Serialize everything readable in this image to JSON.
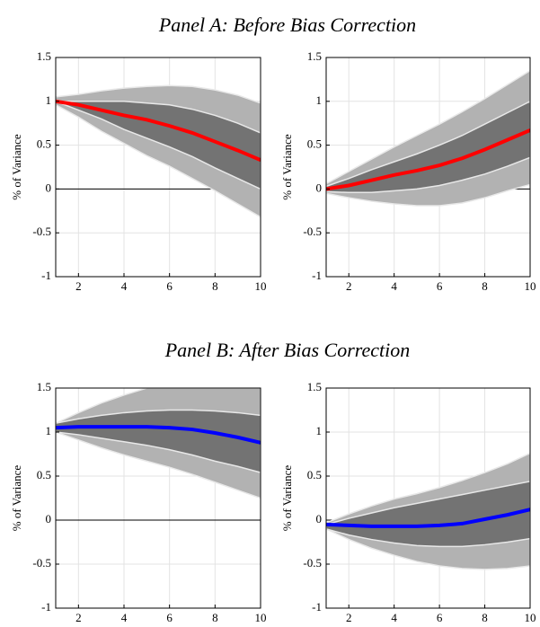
{
  "chart_data": [
    {
      "type": "line",
      "title": "Panel A: Before Bias Correction",
      "ylabel": "% of Variance",
      "x": [
        1,
        2,
        3,
        4,
        5,
        6,
        7,
        8,
        9,
        10
      ],
      "xlim": [
        1,
        10
      ],
      "xticks": [
        2,
        4,
        6,
        8,
        10
      ],
      "ylim": [
        -1,
        1.5
      ],
      "yticks": [
        -1,
        -0.5,
        0,
        0.5,
        1,
        1.5
      ],
      "grid": true,
      "hline": 0,
      "bands": [
        {
          "color": "#b2b2b2",
          "lower": [
            0.96,
            0.82,
            0.66,
            0.52,
            0.38,
            0.26,
            0.12,
            -0.02,
            -0.17,
            -0.32
          ],
          "upper": [
            1.05,
            1.08,
            1.12,
            1.15,
            1.17,
            1.18,
            1.17,
            1.13,
            1.07,
            0.98
          ]
        },
        {
          "color": "#737373",
          "lower": [
            1.0,
            0.9,
            0.8,
            0.68,
            0.58,
            0.48,
            0.37,
            0.24,
            0.12,
            0.0
          ],
          "upper": [
            1.0,
            1.0,
            1.0,
            1.0,
            0.98,
            0.96,
            0.91,
            0.84,
            0.75,
            0.64
          ]
        }
      ],
      "line": {
        "color": "#ff0000",
        "values": [
          1.0,
          0.96,
          0.9,
          0.84,
          0.79,
          0.72,
          0.64,
          0.54,
          0.44,
          0.33
        ]
      }
    },
    {
      "type": "line",
      "ylabel": "% of Variance",
      "x": [
        1,
        2,
        3,
        4,
        5,
        6,
        7,
        8,
        9,
        10
      ],
      "xlim": [
        1,
        10
      ],
      "xticks": [
        2,
        4,
        6,
        8,
        10
      ],
      "ylim": [
        -1,
        1.5
      ],
      "yticks": [
        -1,
        -0.5,
        0,
        0.5,
        1,
        1.5
      ],
      "grid": true,
      "hline": 0,
      "bands": [
        {
          "color": "#b2b2b2",
          "lower": [
            -0.05,
            -0.1,
            -0.14,
            -0.17,
            -0.19,
            -0.19,
            -0.16,
            -0.1,
            -0.02,
            0.05
          ],
          "upper": [
            0.06,
            0.2,
            0.34,
            0.48,
            0.61,
            0.74,
            0.88,
            1.03,
            1.19,
            1.35
          ]
        },
        {
          "color": "#737373",
          "lower": [
            -0.03,
            -0.04,
            -0.04,
            -0.02,
            0.0,
            0.04,
            0.1,
            0.17,
            0.26,
            0.36
          ],
          "upper": [
            0.03,
            0.12,
            0.22,
            0.31,
            0.4,
            0.5,
            0.61,
            0.74,
            0.87,
            1.0
          ]
        }
      ],
      "line": {
        "color": "#ff0000",
        "values": [
          0.0,
          0.04,
          0.1,
          0.16,
          0.21,
          0.27,
          0.35,
          0.45,
          0.56,
          0.67
        ]
      }
    },
    {
      "type": "line",
      "title": "Panel B: After Bias Correction",
      "ylabel": "% of Variance",
      "x": [
        1,
        2,
        3,
        4,
        5,
        6,
        7,
        8,
        9,
        10
      ],
      "xlim": [
        1,
        10
      ],
      "xticks": [
        2,
        4,
        6,
        8,
        10
      ],
      "ylim": [
        -1,
        1.5
      ],
      "yticks": [
        -1,
        -0.5,
        0,
        0.5,
        1,
        1.5
      ],
      "grid": true,
      "hline": 0,
      "bands": [
        {
          "color": "#b2b2b2",
          "lower": [
            1.0,
            0.91,
            0.82,
            0.74,
            0.67,
            0.6,
            0.52,
            0.43,
            0.34,
            0.25
          ],
          "upper": [
            1.1,
            1.22,
            1.33,
            1.42,
            1.5,
            1.5,
            1.5,
            1.5,
            1.5,
            1.5
          ]
        },
        {
          "color": "#737373",
          "lower": [
            1.0,
            0.97,
            0.93,
            0.89,
            0.85,
            0.8,
            0.74,
            0.67,
            0.61,
            0.54
          ],
          "upper": [
            1.1,
            1.15,
            1.19,
            1.22,
            1.24,
            1.25,
            1.25,
            1.24,
            1.22,
            1.19
          ]
        }
      ],
      "line": {
        "color": "#0000ff",
        "values": [
          1.05,
          1.06,
          1.06,
          1.06,
          1.06,
          1.05,
          1.03,
          0.99,
          0.94,
          0.88
        ]
      }
    },
    {
      "type": "line",
      "ylabel": "% of Variance",
      "x": [
        1,
        2,
        3,
        4,
        5,
        6,
        7,
        8,
        9,
        10
      ],
      "xlim": [
        1,
        10
      ],
      "xticks": [
        2,
        4,
        6,
        8,
        10
      ],
      "ylim": [
        -1,
        1.5
      ],
      "yticks": [
        -1,
        -0.5,
        0,
        0.5,
        1,
        1.5
      ],
      "grid": true,
      "hline": 0,
      "bands": [
        {
          "color": "#b2b2b2",
          "lower": [
            -0.1,
            -0.22,
            -0.32,
            -0.4,
            -0.47,
            -0.52,
            -0.55,
            -0.56,
            -0.55,
            -0.52
          ],
          "upper": [
            -0.03,
            0.07,
            0.16,
            0.24,
            0.3,
            0.37,
            0.45,
            0.54,
            0.64,
            0.76
          ]
        },
        {
          "color": "#737373",
          "lower": [
            -0.1,
            -0.17,
            -0.22,
            -0.26,
            -0.29,
            -0.3,
            -0.3,
            -0.28,
            -0.25,
            -0.21
          ],
          "upper": [
            -0.05,
            0.02,
            0.08,
            0.14,
            0.19,
            0.24,
            0.29,
            0.34,
            0.39,
            0.44
          ]
        }
      ],
      "line": {
        "color": "#0000ff",
        "values": [
          -0.05,
          -0.06,
          -0.07,
          -0.07,
          -0.07,
          -0.06,
          -0.04,
          0.01,
          0.06,
          0.12
        ]
      }
    }
  ]
}
